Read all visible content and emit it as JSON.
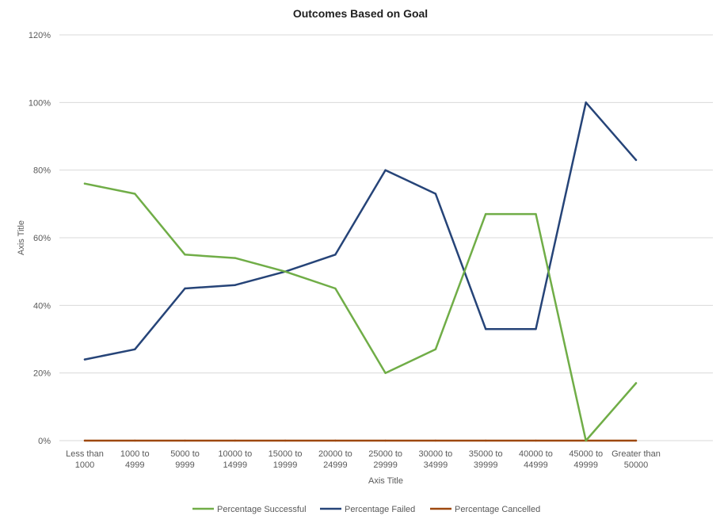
{
  "chart_data": {
    "type": "line",
    "title": "Outcomes Based on Goal",
    "xlabel": "Axis Title",
    "ylabel": "Axis Title",
    "categories": [
      "Less than 1000",
      "1000 to 4999",
      "5000 to 9999",
      "10000 to 14999",
      "15000 to 19999",
      "20000 to 24999",
      "25000 to 29999",
      "30000 to 34999",
      "35000 to 39999",
      "40000 to 44999",
      "45000 to 49999",
      "Greater than 50000"
    ],
    "category_lines": [
      [
        "Less than",
        "1000"
      ],
      [
        "1000 to",
        "4999"
      ],
      [
        "5000 to",
        "9999"
      ],
      [
        "10000 to",
        "14999"
      ],
      [
        "15000 to",
        "19999"
      ],
      [
        "20000 to",
        "24999"
      ],
      [
        "25000 to",
        "29999"
      ],
      [
        "30000 to",
        "34999"
      ],
      [
        "35000 to",
        "39999"
      ],
      [
        "40000 to",
        "44999"
      ],
      [
        "45000 to",
        "49999"
      ],
      [
        "Greater than",
        "50000"
      ]
    ],
    "y_ticks": [
      "0%",
      "20%",
      "40%",
      "60%",
      "80%",
      "100%",
      "120%"
    ],
    "ylim": [
      0,
      1.2
    ],
    "grid": true,
    "legend_position": "bottom",
    "series": [
      {
        "name": "Percentage Successful",
        "color": "#70ad47",
        "values": [
          0.76,
          0.73,
          0.55,
          0.54,
          0.5,
          0.45,
          0.2,
          0.27,
          0.67,
          0.67,
          0.0,
          0.17
        ]
      },
      {
        "name": "Percentage Failed",
        "color": "#264478",
        "values": [
          0.24,
          0.27,
          0.45,
          0.46,
          0.5,
          0.55,
          0.8,
          0.73,
          0.33,
          0.33,
          1.0,
          0.83
        ]
      },
      {
        "name": "Percentage Cancelled",
        "color": "#9e480e",
        "values": [
          0,
          0,
          0,
          0,
          0,
          0,
          0,
          0,
          0,
          0,
          0,
          0
        ]
      }
    ]
  }
}
